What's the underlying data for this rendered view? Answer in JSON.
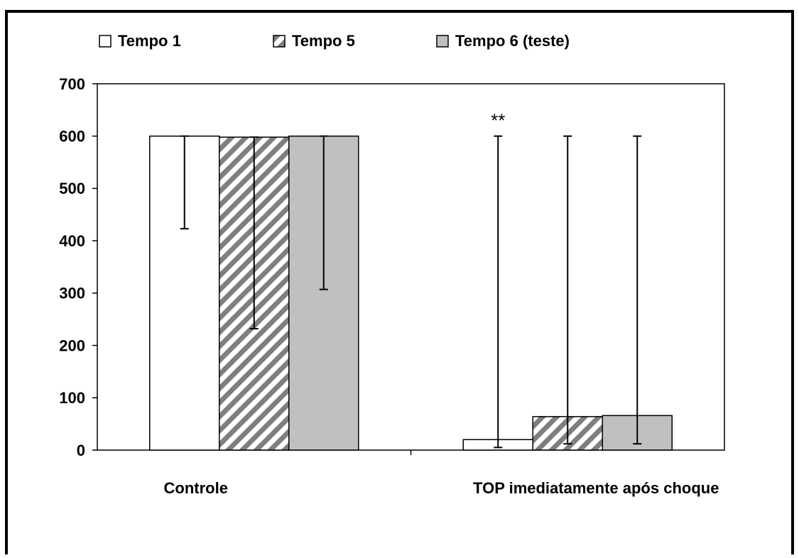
{
  "chart_data": {
    "type": "bar",
    "categories": [
      "Controle",
      "TOP imediatamente após choque"
    ],
    "series": [
      {
        "name": "Tempo 1",
        "color": "#ffffff",
        "values": [
          600,
          20
        ],
        "lower": [
          423,
          5
        ],
        "upper": [
          600,
          600
        ]
      },
      {
        "name": "Tempo 5",
        "color": "#ffffff",
        "pattern": "hatch",
        "values": [
          598,
          64
        ],
        "lower": [
          232,
          12
        ],
        "upper": [
          598,
          600
        ]
      },
      {
        "name": "Tempo 6 (teste)",
        "color": "#c0c0c0",
        "values": [
          600,
          66
        ],
        "lower": [
          307,
          12
        ],
        "upper": [
          600,
          600
        ]
      }
    ],
    "annotations": [
      {
        "text": "**",
        "category": 1,
        "series": 0
      }
    ],
    "ylim": [
      0,
      700
    ],
    "yticks": [
      0,
      100,
      200,
      300,
      400,
      500,
      600,
      700
    ],
    "grid": false
  }
}
